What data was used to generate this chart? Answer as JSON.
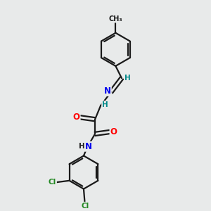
{
  "bg_color": "#e8eaea",
  "bond_color": "#1a1a1a",
  "atom_colors": {
    "N": "#0000ee",
    "O": "#ff0000",
    "Cl": "#228822",
    "C": "#1a1a1a",
    "H": "#1a1a1a",
    "N_teal": "#008888"
  }
}
